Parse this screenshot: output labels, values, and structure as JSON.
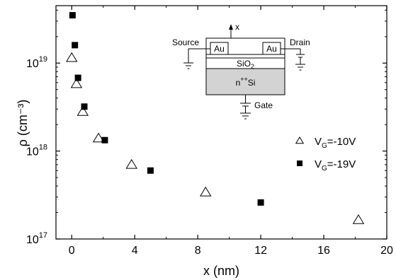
{
  "chart_data": {
    "type": "scatter",
    "xlabel": "x (nm)",
    "ylabel": "ρ (cm⁻³)",
    "xlim": [
      -1,
      20
    ],
    "ylim": [
      1e+17,
      4.5e+19
    ],
    "yscale": "log",
    "x_ticks": [
      0,
      4,
      8,
      12,
      16,
      20
    ],
    "x_tick_labels": [
      "0",
      "4",
      "8",
      "12",
      "16",
      "20"
    ],
    "y_ticks": [
      1e+17,
      1e+18,
      1e+19
    ],
    "y_tick_labels": [
      {
        "base": "10",
        "exp": "17"
      },
      {
        "base": "10",
        "exp": "18"
      },
      {
        "base": "10",
        "exp": "19"
      }
    ],
    "legend_position": "right",
    "series": [
      {
        "name": "V_G=-10V",
        "label_main": "V",
        "label_sub": "G",
        "label_rest": "=-10V",
        "marker": "open-triangle",
        "x": [
          0.0,
          0.3,
          0.7,
          1.7,
          3.8,
          8.5,
          18.2
        ],
        "y": [
          1.15e+19,
          5.8e+18,
          2.8e+18,
          1.4e+18,
          7e+17,
          3.4e+17,
          1.65e+17
        ]
      },
      {
        "name": "V_G=-19V",
        "label_main": "V",
        "label_sub": "G",
        "label_rest": "=-19V",
        "marker": "filled-square",
        "x": [
          0.05,
          0.2,
          0.4,
          0.8,
          2.1,
          5.0,
          12.0
        ],
        "y": [
          3.5e+19,
          1.6e+19,
          6.8e+18,
          3.2e+18,
          1.33e+18,
          6e+17,
          2.6e+17
        ]
      }
    ],
    "inset": {
      "axis_label": "x",
      "source_label": "Source",
      "drain_label": "Drain",
      "electrode_label": "Au",
      "oxide_label_main": "SiO",
      "oxide_label_sub": "2",
      "substrate_label_main": "n",
      "substrate_label_sup": "++",
      "substrate_label_rest": "Si",
      "gate_label": "Gate",
      "substrate_color": "#d3d3d3"
    }
  }
}
